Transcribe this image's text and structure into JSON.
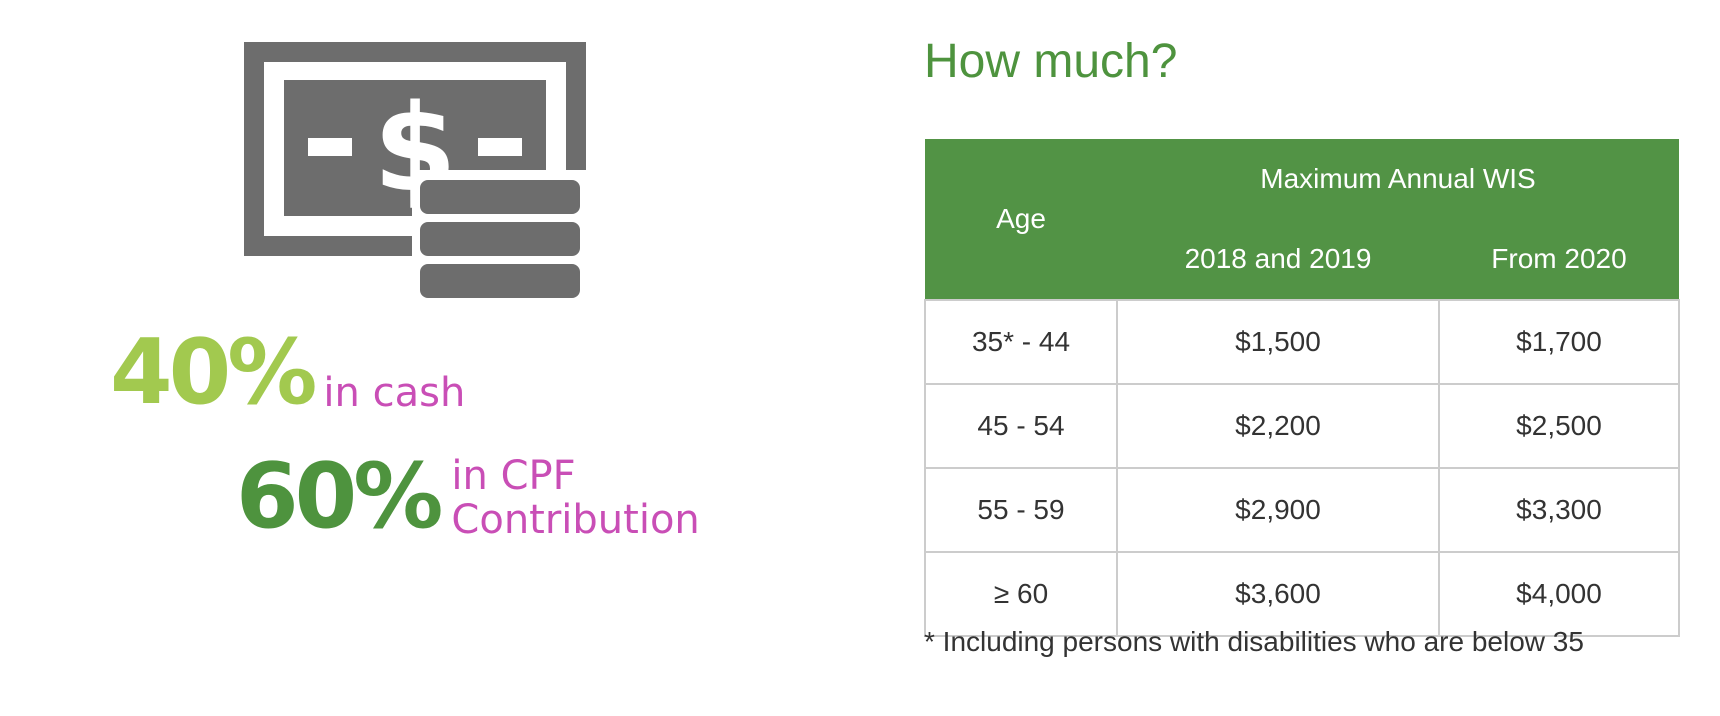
{
  "infographic": {
    "cash": {
      "percent": "40%",
      "label": "in cash"
    },
    "cpf": {
      "percent": "60%",
      "label_line1": "in CPF",
      "label_line2": "Contribution"
    },
    "icon": "money-bill-coins-icon",
    "colors": {
      "icon_gray": "#6d6d6d",
      "cash_green": "#a2c94f",
      "cpf_green": "#4e933e",
      "label_magenta": "#c94eb6"
    }
  },
  "section": {
    "title": "How much?"
  },
  "table": {
    "header": {
      "age": "Age",
      "group": "Maximum Annual WIS",
      "col_2018": "2018 and 2019",
      "col_2020": "From 2020"
    },
    "rows": [
      {
        "age": "35* - 44",
        "v2018": "$1,500",
        "v2020": "$1,700"
      },
      {
        "age": "45 - 54",
        "v2018": "$2,200",
        "v2020": "$2,500"
      },
      {
        "age": "55 - 59",
        "v2018": "$2,900",
        "v2020": "$3,300"
      },
      {
        "age": "≥ 60",
        "v2018": "$3,600",
        "v2020": "$4,000"
      }
    ],
    "header_color": "#529345"
  },
  "footnote": "* Including persons with disabilities who are below 35"
}
